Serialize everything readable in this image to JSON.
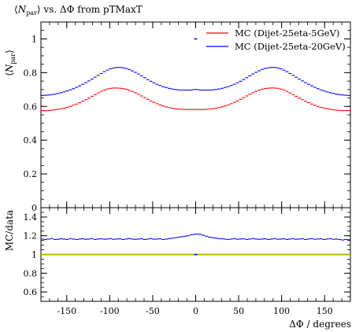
{
  "chart_data": [
    {
      "type": "line",
      "panel": "main",
      "title": "⟨N_par⟩ vs. ΔΦ from pTMaxT",
      "title_parts": {
        "n": "N",
        "sub": "par",
        "rest": " vs. ΔΦ from pTMaxT"
      },
      "ylabel": "⟨N_par⟩",
      "ylabel_parts": {
        "n": "N",
        "sub": "par"
      },
      "xlim": [
        -180,
        180
      ],
      "ylim": [
        0,
        1.1
      ],
      "yticks": [
        0,
        0.2,
        0.4,
        0.6,
        0.8,
        1
      ],
      "ytick_labels": [
        "0",
        "0.2",
        "0.4",
        "0.6",
        "0.8",
        "1"
      ],
      "legend_position": "top-right",
      "x": [
        -178.2,
        -174.6,
        -171,
        -167.4,
        -163.8,
        -160.2,
        -156.6,
        -153,
        -149.4,
        -145.8,
        -142.2,
        -138.6,
        -135,
        -131.4,
        -127.8,
        -124.2,
        -120.6,
        -117,
        -113.4,
        -109.8,
        -106.2,
        -102.6,
        -99,
        -95.4,
        -91.8,
        -88.2,
        -84.6,
        -81,
        -77.4,
        -73.8,
        -70.2,
        -66.6,
        -63,
        -59.4,
        -55.8,
        -52.2,
        -48.6,
        -45,
        -41.4,
        -37.8,
        -34.2,
        -30.6,
        -27,
        -23.4,
        -19.8,
        -16.2,
        -12.6,
        -9,
        -5.4,
        -1.8,
        1.8,
        5.4,
        9,
        12.6,
        16.2,
        19.8,
        23.4,
        27,
        30.6,
        34.2,
        37.8,
        41.4,
        45,
        48.6,
        52.2,
        55.8,
        59.4,
        63,
        66.6,
        70.2,
        73.8,
        77.4,
        81,
        84.6,
        88.2,
        91.8,
        95.4,
        99,
        102.6,
        106.2,
        109.8,
        113.4,
        117,
        120.6,
        124.2,
        127.8,
        131.4,
        135,
        138.6,
        142.2,
        145.8,
        149.4,
        153,
        156.6,
        160.2,
        163.8,
        167.4,
        171,
        174.6,
        178.2
      ],
      "series": [
        {
          "name": "MC (Dijet-25eta-5GeV)",
          "color": "#ff0000",
          "values": [
            0.575,
            0.575,
            0.576,
            0.578,
            0.58,
            0.583,
            0.586,
            0.59,
            0.595,
            0.6,
            0.607,
            0.614,
            0.622,
            0.631,
            0.64,
            0.65,
            0.66,
            0.67,
            0.68,
            0.689,
            0.697,
            0.703,
            0.707,
            0.709,
            0.709,
            0.708,
            0.706,
            0.702,
            0.696,
            0.689,
            0.681,
            0.672,
            0.662,
            0.652,
            0.642,
            0.633,
            0.624,
            0.616,
            0.609,
            0.603,
            0.597,
            0.593,
            0.589,
            0.586,
            0.584,
            0.583,
            0.582,
            0.582,
            0.582,
            0.582,
            0.582,
            0.582,
            0.582,
            0.583,
            0.584,
            0.586,
            0.589,
            0.593,
            0.597,
            0.603,
            0.609,
            0.616,
            0.624,
            0.633,
            0.642,
            0.652,
            0.662,
            0.672,
            0.681,
            0.689,
            0.696,
            0.702,
            0.706,
            0.708,
            0.709,
            0.709,
            0.707,
            0.703,
            0.697,
            0.689,
            0.68,
            0.67,
            0.66,
            0.65,
            0.64,
            0.631,
            0.622,
            0.614,
            0.607,
            0.6,
            0.595,
            0.59,
            0.586,
            0.583,
            0.58,
            0.578,
            0.576,
            0.575,
            0.575,
            0.575
          ]
        },
        {
          "name": "MC (Dijet-25eta-20GeV)",
          "color": "#0000ff",
          "values": [
            0.665,
            0.666,
            0.668,
            0.67,
            0.673,
            0.677,
            0.681,
            0.686,
            0.692,
            0.698,
            0.705,
            0.713,
            0.722,
            0.731,
            0.741,
            0.751,
            0.762,
            0.773,
            0.784,
            0.795,
            0.806,
            0.815,
            0.823,
            0.828,
            0.831,
            0.831,
            0.829,
            0.825,
            0.819,
            0.811,
            0.802,
            0.792,
            0.781,
            0.77,
            0.759,
            0.749,
            0.74,
            0.731,
            0.724,
            0.717,
            0.712,
            0.707,
            0.703,
            0.7,
            0.698,
            0.697,
            0.697,
            0.697,
            0.697,
            0.7,
            0.7,
            0.697,
            0.697,
            0.697,
            0.697,
            0.698,
            0.7,
            0.703,
            0.707,
            0.712,
            0.717,
            0.724,
            0.731,
            0.74,
            0.749,
            0.759,
            0.77,
            0.781,
            0.792,
            0.802,
            0.811,
            0.819,
            0.825,
            0.829,
            0.831,
            0.831,
            0.828,
            0.823,
            0.815,
            0.806,
            0.795,
            0.784,
            0.773,
            0.762,
            0.751,
            0.741,
            0.731,
            0.722,
            0.713,
            0.705,
            0.698,
            0.692,
            0.686,
            0.681,
            0.677,
            0.673,
            0.67,
            0.668,
            0.666,
            0.665
          ]
        }
      ],
      "markers": [
        {
          "x": 0,
          "y": 1.0,
          "color": "#0000ff"
        }
      ]
    },
    {
      "type": "line",
      "panel": "ratio",
      "ylabel": "MC/data",
      "xlabel": "ΔΦ / degrees",
      "xlim": [
        -180,
        180
      ],
      "ylim": [
        0.5,
        1.5
      ],
      "yticks": [
        0.6,
        0.8,
        1.0,
        1.2,
        1.4
      ],
      "ytick_labels": [
        "0.6",
        "0.8",
        "1",
        "1.2",
        "1.4"
      ],
      "xticks": [
        -150,
        -100,
        -50,
        0,
        50,
        100,
        150
      ],
      "xtick_labels": [
        "-150",
        "-100",
        "-50",
        "0",
        "50",
        "100",
        "150"
      ],
      "reference": {
        "y": 1.0,
        "color": "#b5b500"
      },
      "series": [
        {
          "name": "MC (Dijet-25eta-20GeV) / data",
          "color": "#0000ff",
          "values": [
            1.165,
            1.16,
            1.165,
            1.17,
            1.16,
            1.162,
            1.168,
            1.165,
            1.16,
            1.17,
            1.165,
            1.16,
            1.165,
            1.168,
            1.162,
            1.165,
            1.17,
            1.16,
            1.165,
            1.168,
            1.163,
            1.165,
            1.17,
            1.162,
            1.165,
            1.168,
            1.16,
            1.165,
            1.17,
            1.165,
            1.162,
            1.165,
            1.168,
            1.16,
            1.165,
            1.17,
            1.163,
            1.165,
            1.168,
            1.16,
            1.165,
            1.17,
            1.175,
            1.18,
            1.185,
            1.19,
            1.195,
            1.2,
            1.21,
            1.215,
            1.22,
            1.215,
            1.205,
            1.195,
            1.185,
            1.18,
            1.175,
            1.17,
            1.168,
            1.165,
            1.16,
            1.165,
            1.17,
            1.163,
            1.165,
            1.168,
            1.16,
            1.165,
            1.17,
            1.165,
            1.162,
            1.165,
            1.168,
            1.16,
            1.165,
            1.17,
            1.163,
            1.165,
            1.168,
            1.16,
            1.165,
            1.17,
            1.162,
            1.165,
            1.168,
            1.16,
            1.165,
            1.17,
            1.163,
            1.165,
            1.168,
            1.16,
            1.165,
            1.17,
            1.162,
            1.165,
            1.16,
            1.155,
            1.16,
            1.158
          ]
        }
      ],
      "markers": [
        {
          "x": 0,
          "y": 1.0,
          "color": "#0000ff"
        }
      ]
    }
  ]
}
